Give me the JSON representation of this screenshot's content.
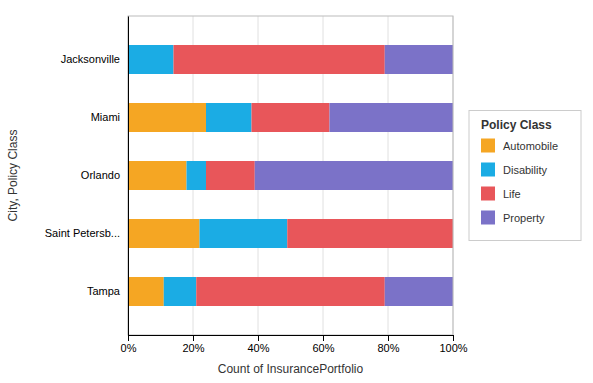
{
  "chart_data": {
    "type": "bar",
    "orientation": "horizontal",
    "stacked": true,
    "grid": true,
    "legend": "right",
    "legend_title": "Policy Class",
    "xlabel": "Count of InsurancePortfolio",
    "ylabel": "City, Policy Class",
    "categories": [
      "Tampa",
      "Saint Petersb...",
      "Orlando",
      "Miami",
      "Jacksonville"
    ],
    "series": [
      {
        "name": "Automobile",
        "color": "#F5A623",
        "values": [
          0.11,
          0.22,
          0.18,
          0.24,
          0.0
        ]
      },
      {
        "name": "Disability",
        "color": "#1BACE4",
        "values": [
          0.1,
          0.27,
          0.06,
          0.14,
          0.14
        ]
      },
      {
        "name": "Life",
        "color": "#E8565A",
        "values": [
          0.58,
          0.51,
          0.15,
          0.24,
          0.65
        ]
      },
      {
        "name": "Property",
        "color": "#7B72C8",
        "values": [
          0.21,
          0.0,
          0.61,
          0.38,
          0.21
        ]
      }
    ],
    "xlim": [
      0,
      1.0
    ],
    "xticks": [
      {
        "value": 0,
        "label": "0%"
      },
      {
        "value": 0.2,
        "label": "20%"
      },
      {
        "value": 0.4,
        "label": "40%"
      },
      {
        "value": 0.6,
        "label": "60%"
      },
      {
        "value": 0.8,
        "label": "80%"
      },
      {
        "value": 1.0,
        "label": "100%"
      }
    ]
  }
}
